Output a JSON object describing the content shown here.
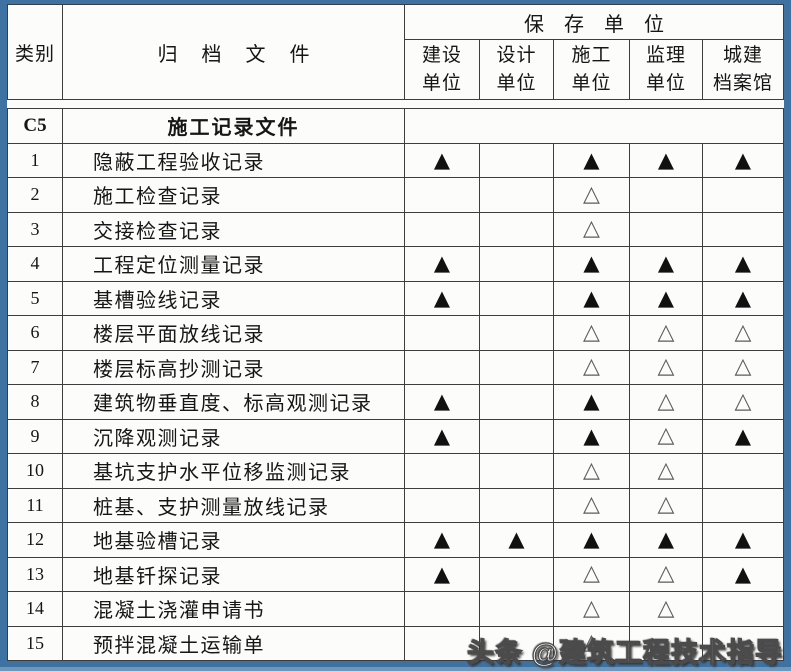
{
  "table": {
    "header": {
      "category": "类别",
      "document": "归档文件",
      "storage_title": "保存单位",
      "units": [
        "建设\n单位",
        "设计\n单位",
        "施工\n单位",
        "监理\n单位",
        "城建\n档案馆"
      ]
    },
    "section": {
      "code": "C5",
      "title": "施工记录文件"
    },
    "rows": [
      {
        "num": "1",
        "doc": "隐蔽工程验收记录",
        "marks": [
          "▲",
          "",
          "▲",
          "▲",
          "▲"
        ]
      },
      {
        "num": "2",
        "doc": "施工检查记录",
        "marks": [
          "",
          "",
          "△",
          "",
          ""
        ]
      },
      {
        "num": "3",
        "doc": "交接检查记录",
        "marks": [
          "",
          "",
          "△",
          "",
          ""
        ]
      },
      {
        "num": "4",
        "doc": "工程定位测量记录",
        "marks": [
          "▲",
          "",
          "▲",
          "▲",
          "▲"
        ]
      },
      {
        "num": "5",
        "doc": "基槽验线记录",
        "marks": [
          "▲",
          "",
          "▲",
          "▲",
          "▲"
        ]
      },
      {
        "num": "6",
        "doc": "楼层平面放线记录",
        "marks": [
          "",
          "",
          "△",
          "△",
          "△"
        ]
      },
      {
        "num": "7",
        "doc": "楼层标高抄测记录",
        "marks": [
          "",
          "",
          "△",
          "△",
          "△"
        ]
      },
      {
        "num": "8",
        "doc": "建筑物垂直度、标高观测记录",
        "marks": [
          "▲",
          "",
          "▲",
          "△",
          "△"
        ]
      },
      {
        "num": "9",
        "doc": "沉降观测记录",
        "marks": [
          "▲",
          "",
          "▲",
          "△",
          "▲"
        ]
      },
      {
        "num": "10",
        "doc": "基坑支护水平位移监测记录",
        "marks": [
          "",
          "",
          "△",
          "△",
          ""
        ]
      },
      {
        "num": "11",
        "doc": "桩基、支护测量放线记录",
        "marks": [
          "",
          "",
          "△",
          "△",
          ""
        ]
      },
      {
        "num": "12",
        "doc": "地基验槽记录",
        "marks": [
          "▲",
          "▲",
          "▲",
          "▲",
          "▲"
        ]
      },
      {
        "num": "13",
        "doc": "地基钎探记录",
        "marks": [
          "▲",
          "",
          "△",
          "△",
          "▲"
        ]
      },
      {
        "num": "14",
        "doc": "混凝土浇灌申请书",
        "marks": [
          "",
          "",
          "△",
          "△",
          ""
        ]
      },
      {
        "num": "15",
        "doc": "预拌混凝土运输单",
        "marks": [
          "",
          "",
          "△",
          "",
          ""
        ]
      }
    ]
  },
  "watermark": {
    "text": "头条 @建筑工程技术指导"
  },
  "colors": {
    "frame_blue": "#3d72a3",
    "line": "#3d3d3d",
    "paper": "#fcfcfa",
    "filled_mark": "#111111",
    "hollow_mark": "#5c5c5c"
  }
}
